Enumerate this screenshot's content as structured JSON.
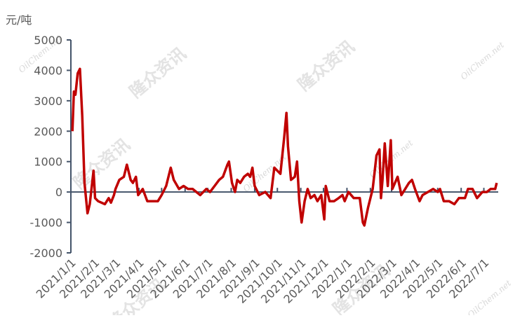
{
  "chart_data": {
    "type": "line",
    "y_label": "元/吨",
    "watermark": [
      "隆众资讯",
      "OilChem.net"
    ],
    "xlim": [
      "2021/1/1",
      "2022/7/20"
    ],
    "xticks": [
      "2021/1/1",
      "2021/2/1",
      "2021/3/1",
      "2021/4/1",
      "2021/5/1",
      "2021/6/1",
      "2021/7/1",
      "2021/8/1",
      "2021/9/1",
      "2021/10/1",
      "2021/11/1",
      "2021/12/1",
      "2022/1/1",
      "2022/2/1",
      "2022/3/1",
      "2022/4/1",
      "2022/5/1",
      "2022/6/1",
      "2022/7/1"
    ],
    "ylim": [
      -2000,
      5000
    ],
    "yticks": [
      -2000,
      -1000,
      0,
      1000,
      2000,
      3000,
      4000,
      5000
    ],
    "x": [
      "2021/1/3",
      "2021/1/5",
      "2021/1/7",
      "2021/1/10",
      "2021/1/13",
      "2021/1/16",
      "2021/1/19",
      "2021/1/23",
      "2021/1/26",
      "2021/1/31",
      "2021/2/2",
      "2021/2/6",
      "2021/2/15",
      "2021/2/20",
      "2021/2/23",
      "2021/2/27",
      "2021/3/1",
      "2021/3/6",
      "2021/3/12",
      "2021/3/16",
      "2021/3/21",
      "2021/3/24",
      "2021/3/28",
      "2021/3/31",
      "2021/4/6",
      "2021/4/12",
      "2021/4/19",
      "2021/4/26",
      "2021/5/1",
      "2021/5/7",
      "2021/5/13",
      "2021/5/17",
      "2021/5/24",
      "2021/5/30",
      "2021/6/5",
      "2021/6/11",
      "2021/6/21",
      "2021/6/29",
      "2021/7/4",
      "2021/7/10",
      "2021/7/16",
      "2021/7/21",
      "2021/7/27",
      "2021/7/29",
      "2021/8/2",
      "2021/8/6",
      "2021/8/9",
      "2021/8/13",
      "2021/8/18",
      "2021/8/23",
      "2021/8/26",
      "2021/8/29",
      "2021/9/1",
      "2021/9/7",
      "2021/9/15",
      "2021/9/22",
      "2021/9/27",
      "2021/10/5",
      "2021/10/10",
      "2021/10/13",
      "2021/10/15",
      "2021/10/19",
      "2021/10/24",
      "2021/10/27",
      "2021/10/30",
      "2021/11/2",
      "2021/11/6",
      "2021/11/10",
      "2021/11/14",
      "2021/11/19",
      "2021/11/23",
      "2021/11/28",
      "2021/12/2",
      "2021/12/4",
      "2021/12/9",
      "2021/12/15",
      "2021/12/21",
      "2021/12/26",
      "2021/12/29",
      "2022/1/3",
      "2022/1/10",
      "2022/1/18",
      "2022/1/22",
      "2022/1/24",
      "2022/1/29",
      "2022/2/4",
      "2022/2/9",
      "2022/2/13",
      "2022/2/15",
      "2022/2/17",
      "2022/2/20",
      "2022/2/24",
      "2022/2/28",
      "2022/3/2",
      "2022/3/9",
      "2022/3/14",
      "2022/3/19",
      "2022/3/24",
      "2022/3/28",
      "2022/4/1",
      "2022/4/7",
      "2022/4/11",
      "2022/4/18",
      "2022/4/25",
      "2022/5/1",
      "2022/5/4",
      "2022/5/9",
      "2022/5/16",
      "2022/5/23",
      "2022/5/29",
      "2022/6/6",
      "2022/6/10",
      "2022/6/16",
      "2022/6/22",
      "2022/6/29",
      "2022/7/5",
      "2022/7/10",
      "2022/7/16",
      "2022/7/18"
    ],
    "series": [
      {
        "color": "#c00000",
        "values": [
          2000,
          3300,
          3200,
          3900,
          4050,
          2500,
          300,
          -700,
          -400,
          700,
          -200,
          -300,
          -400,
          -200,
          -350,
          -100,
          100,
          400,
          500,
          900,
          400,
          300,
          500,
          -100,
          100,
          -300,
          -300,
          -300,
          -100,
          200,
          800,
          400,
          100,
          200,
          100,
          100,
          -100,
          100,
          0,
          200,
          400,
          500,
          900,
          1000,
          300,
          0,
          400,
          300,
          500,
          600,
          500,
          800,
          200,
          -100,
          0,
          -200,
          800,
          600,
          1800,
          2600,
          1500,
          400,
          500,
          1000,
          -300,
          -1000,
          -300,
          100,
          -200,
          -100,
          -300,
          -100,
          -900,
          200,
          -300,
          -300,
          -200,
          -100,
          -300,
          0,
          -200,
          -200,
          -1000,
          -1100,
          -500,
          100,
          1200,
          1400,
          -200,
          400,
          1600,
          200,
          1700,
          100,
          500,
          -100,
          100,
          300,
          400,
          100,
          -300,
          -100,
          0,
          100,
          0,
          100,
          -300,
          -300,
          -400,
          -200,
          -200,
          100,
          100,
          -200,
          0,
          0,
          100,
          100,
          300
        ]
      }
    ]
  }
}
